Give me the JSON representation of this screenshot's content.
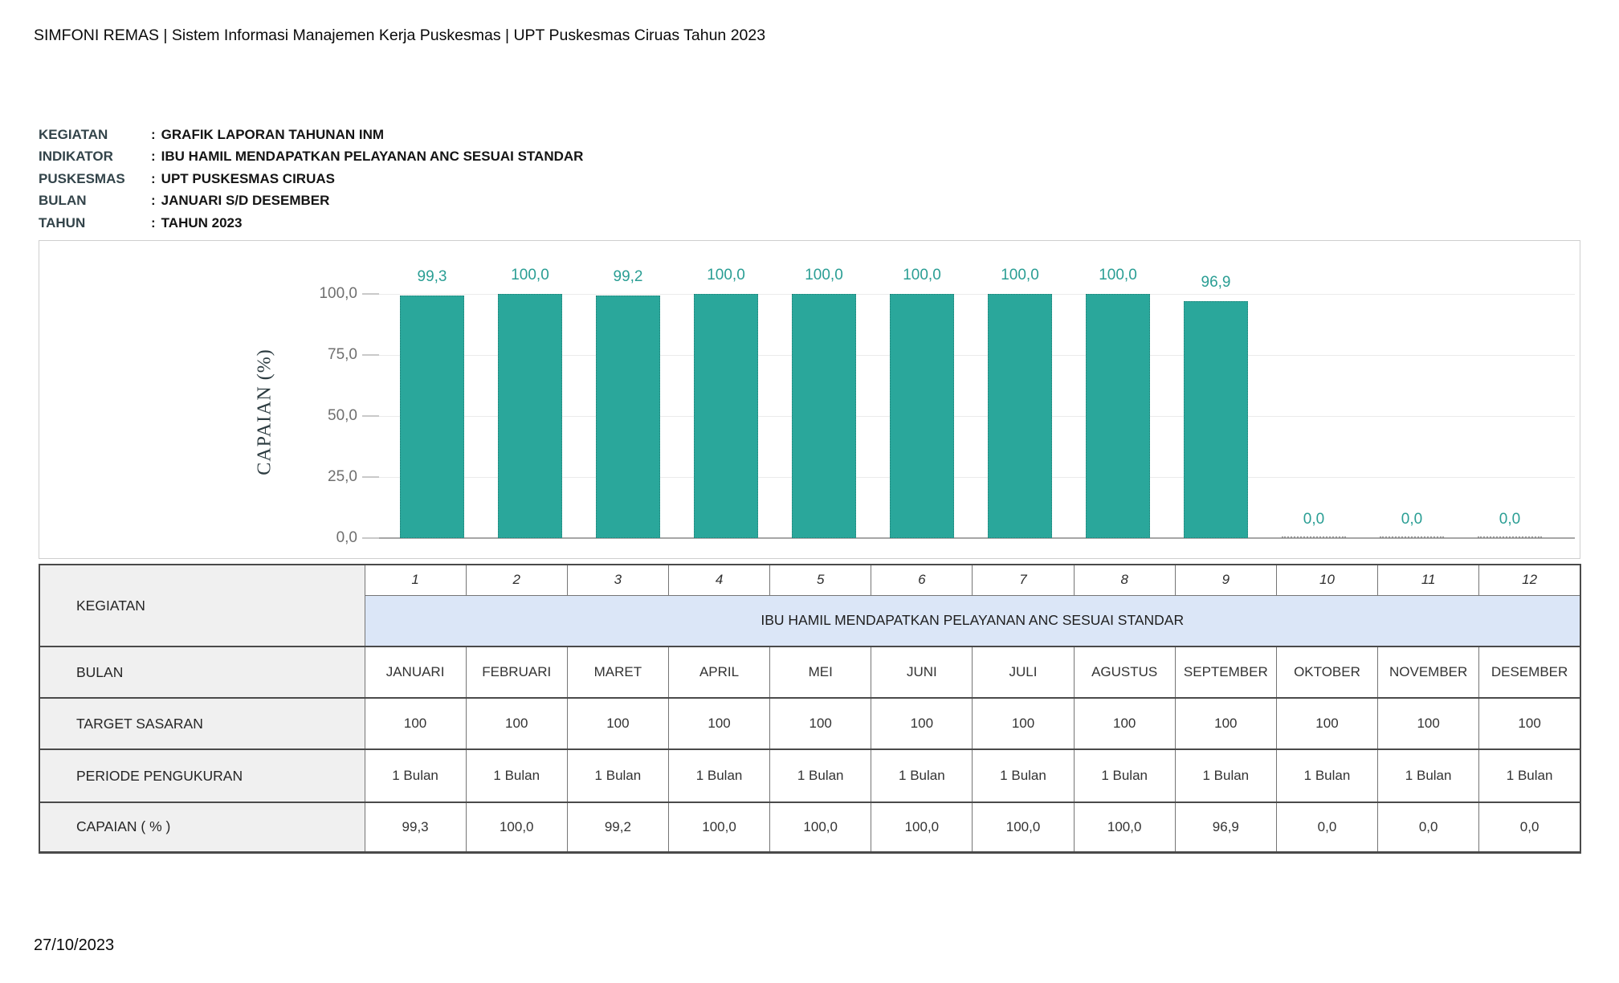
{
  "header": {
    "title": "SIMFONI REMAS | Sistem Informasi Manajemen Kerja Puskesmas | UPT Puskesmas Ciruas Tahun 2023"
  },
  "meta": {
    "colon": ":",
    "rows": [
      {
        "label": "KEGIATAN",
        "value": "GRAFIK LAPORAN TAHUNAN INM"
      },
      {
        "label": "INDIKATOR",
        "value": "IBU HAMIL MENDAPATKAN PELAYANAN ANC SESUAI STANDAR"
      },
      {
        "label": "PUSKESMAS",
        "value": "UPT PUSKESMAS CIRUAS"
      },
      {
        "label": "BULAN",
        "value": "JANUARI S/D DESEMBER"
      },
      {
        "label": "TAHUN",
        "value": "TAHUN 2023"
      }
    ]
  },
  "chart_data": {
    "type": "bar",
    "title": "",
    "xlabel": "",
    "ylabel": "CAPAIAN (%)",
    "categories": [
      "JANUARI",
      "FEBRUARI",
      "MARET",
      "APRIL",
      "MEI",
      "JUNI",
      "JULI",
      "AGUSTUS",
      "SEPTEMBER",
      "OKTOBER",
      "NOVEMBER",
      "DESEMBER"
    ],
    "values": [
      99.3,
      100.0,
      99.2,
      100.0,
      100.0,
      100.0,
      100.0,
      100.0,
      96.9,
      0.0,
      0.0,
      0.0
    ],
    "value_labels": [
      "99,3",
      "100,0",
      "99,2",
      "100,0",
      "100,0",
      "100,0",
      "100,0",
      "100,0",
      "96,9",
      "0,0",
      "0,0",
      "0,0"
    ],
    "ylim": [
      0,
      100
    ],
    "yticks": [
      {
        "label": "100,0",
        "value": 100
      },
      {
        "label": "75,0",
        "value": 75
      },
      {
        "label": "50,0",
        "value": 50
      },
      {
        "label": "25,0",
        "value": 25
      },
      {
        "label": "0,0",
        "value": 0
      }
    ],
    "grid": true,
    "legend_position": "none",
    "bar_color": "#2aa79b",
    "value_label_color": "#2a9e94"
  },
  "table": {
    "kegiatan_label": "KEGIATAN",
    "col_numbers": [
      "1",
      "2",
      "3",
      "4",
      "5",
      "6",
      "7",
      "8",
      "9",
      "10",
      "11",
      "12"
    ],
    "indicator": "IBU HAMIL MENDAPATKAN PELAYANAN ANC SESUAI STANDAR",
    "rows": [
      {
        "label": "BULAN",
        "cells": [
          "JANUARI",
          "FEBRUARI",
          "MARET",
          "APRIL",
          "MEI",
          "JUNI",
          "JULI",
          "AGUSTUS",
          "SEPTEMBER",
          "OKTOBER",
          "NOVEMBER",
          "DESEMBER"
        ]
      },
      {
        "label": "TARGET SASARAN",
        "cells": [
          "100",
          "100",
          "100",
          "100",
          "100",
          "100",
          "100",
          "100",
          "100",
          "100",
          "100",
          "100"
        ]
      },
      {
        "label": "PERIODE PENGUKURAN",
        "cells": [
          "1 Bulan",
          "1 Bulan",
          "1 Bulan",
          "1 Bulan",
          "1 Bulan",
          "1 Bulan",
          "1 Bulan",
          "1 Bulan",
          "1 Bulan",
          "1 Bulan",
          "1 Bulan",
          "1 Bulan"
        ]
      },
      {
        "label": "CAPAIAN ( % )",
        "cells": [
          "99,3",
          "100,0",
          "99,2",
          "100,0",
          "100,0",
          "100,0",
          "100,0",
          "100,0",
          "96,9",
          "0,0",
          "0,0",
          "0,0"
        ]
      }
    ]
  },
  "footer": {
    "date": "27/10/2023"
  }
}
